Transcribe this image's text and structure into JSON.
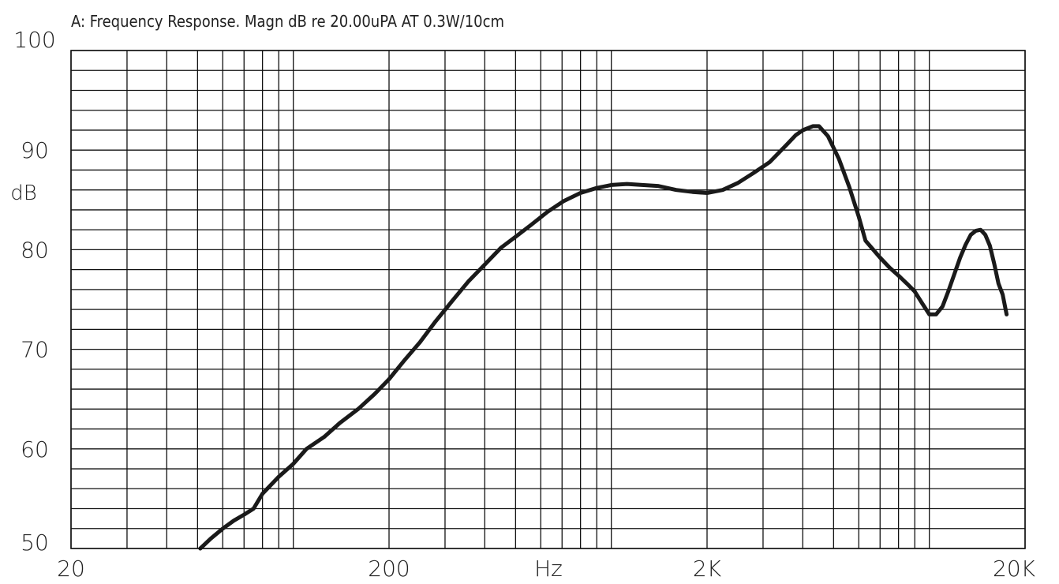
{
  "chart_data": {
    "type": "line",
    "title": "A: Frequency Response. Magn dB re 20.00uPA   AT 0.3W/10cm",
    "xlabel": "Hz",
    "ylabel": "dB",
    "x_scale": "log",
    "xlim": [
      20,
      20000
    ],
    "ylim": [
      50,
      100
    ],
    "grid": true,
    "x_tick_labels": [
      {
        "value": 20,
        "label": "20"
      },
      {
        "value": 200,
        "label": "200"
      },
      {
        "value": 2000,
        "label": "2K"
      },
      {
        "value": 20000,
        "label": "20K"
      }
    ],
    "y_tick_labels": [
      {
        "value": 100,
        "label": "100"
      },
      {
        "value": 90,
        "label": "90"
      },
      {
        "value": 80,
        "label": "80"
      },
      {
        "value": 70,
        "label": "70"
      },
      {
        "value": 60,
        "label": "60"
      },
      {
        "value": 50,
        "label": "50"
      }
    ],
    "x_grid": [
      20,
      30,
      40,
      50,
      60,
      70,
      80,
      90,
      100,
      200,
      300,
      400,
      500,
      600,
      700,
      800,
      900,
      1000,
      2000,
      3000,
      4000,
      5000,
      6000,
      7000,
      8000,
      9000,
      10000,
      20000
    ],
    "y_grid_step": 2,
    "series": [
      {
        "points": [
          [
            51,
            50.0
          ],
          [
            55,
            51.0
          ],
          [
            60,
            52.0
          ],
          [
            65,
            52.8
          ],
          [
            70,
            53.4
          ],
          [
            75,
            54.0
          ],
          [
            80,
            55.5
          ],
          [
            90,
            57.2
          ],
          [
            100,
            58.5
          ],
          [
            110,
            60.0
          ],
          [
            125,
            61.2
          ],
          [
            140,
            62.6
          ],
          [
            160,
            64.0
          ],
          [
            180,
            65.5
          ],
          [
            200,
            67.0
          ],
          [
            225,
            69.0
          ],
          [
            250,
            70.7
          ],
          [
            280,
            72.8
          ],
          [
            315,
            74.8
          ],
          [
            355,
            76.8
          ],
          [
            400,
            78.5
          ],
          [
            450,
            80.2
          ],
          [
            500,
            81.3
          ],
          [
            560,
            82.5
          ],
          [
            630,
            83.8
          ],
          [
            710,
            84.9
          ],
          [
            800,
            85.7
          ],
          [
            900,
            86.2
          ],
          [
            1000,
            86.5
          ],
          [
            1120,
            86.6
          ],
          [
            1250,
            86.5
          ],
          [
            1400,
            86.4
          ],
          [
            1600,
            86.0
          ],
          [
            1800,
            85.8
          ],
          [
            2000,
            85.7
          ],
          [
            2240,
            86.0
          ],
          [
            2500,
            86.7
          ],
          [
            2800,
            87.7
          ],
          [
            3150,
            88.8
          ],
          [
            3550,
            90.5
          ],
          [
            3800,
            91.5
          ],
          [
            4000,
            92.0
          ],
          [
            4300,
            92.4
          ],
          [
            4500,
            92.4
          ],
          [
            4800,
            91.4
          ],
          [
            5200,
            89.1
          ],
          [
            5600,
            86.3
          ],
          [
            6000,
            83.3
          ],
          [
            6300,
            80.9
          ],
          [
            7000,
            79.2
          ],
          [
            7500,
            78.2
          ],
          [
            8000,
            77.4
          ],
          [
            8500,
            76.6
          ],
          [
            9000,
            75.8
          ],
          [
            9500,
            74.6
          ],
          [
            10000,
            73.5
          ],
          [
            10500,
            73.5
          ],
          [
            11000,
            74.3
          ],
          [
            11500,
            75.9
          ],
          [
            12000,
            77.6
          ],
          [
            12500,
            79.2
          ],
          [
            13000,
            80.5
          ],
          [
            13500,
            81.5
          ],
          [
            14000,
            81.9
          ],
          [
            14500,
            82.0
          ],
          [
            15000,
            81.5
          ],
          [
            15500,
            80.4
          ],
          [
            16000,
            78.6
          ],
          [
            16500,
            76.6
          ],
          [
            17000,
            75.5
          ],
          [
            17500,
            73.5
          ]
        ]
      }
    ]
  }
}
